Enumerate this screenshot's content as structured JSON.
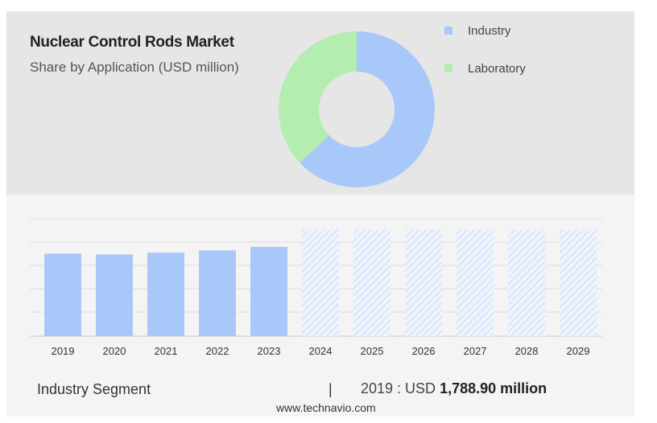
{
  "title": "Nuclear Control Rods Market",
  "subtitle": "Share by Application (USD million)",
  "legend": [
    {
      "label": "Industry",
      "color": "#a9c8fa"
    },
    {
      "label": "Laboratory",
      "color": "#b3edb0"
    }
  ],
  "footer": {
    "segment": "Industry Segment",
    "separator": "|",
    "prefix": "2019 : USD",
    "value": "1,788.90 million"
  },
  "source": "www.technavio.com",
  "chart_data": [
    {
      "type": "pie",
      "title": "Share by Application (USD million)",
      "categories": [
        "Industry",
        "Laboratory"
      ],
      "values": [
        63,
        37
      ],
      "colors": [
        "#a9c8fa",
        "#b3edb0"
      ],
      "donut": true
    },
    {
      "type": "bar",
      "categories": [
        "2019",
        "2020",
        "2021",
        "2022",
        "2023",
        "2024",
        "2025",
        "2026",
        "2027",
        "2028",
        "2029"
      ],
      "values": [
        1788.9,
        1770,
        1810,
        1860,
        1935,
        null,
        null,
        null,
        null,
        null,
        null
      ],
      "forecast_placeholder": [
        false,
        false,
        false,
        false,
        false,
        true,
        true,
        true,
        true,
        true,
        true
      ],
      "bar_color": "#a9c8fa",
      "grid": true
    }
  ]
}
